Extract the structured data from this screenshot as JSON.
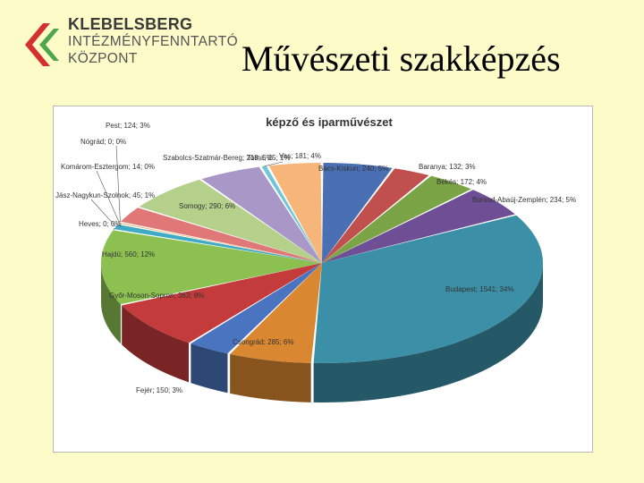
{
  "logo": {
    "line1": "KLEBELSBERG",
    "line2": "INTÉZMÉNYFENNTARTÓ",
    "line3": "KÖZPONT",
    "colors": {
      "red": "#d62f2f",
      "green": "#4da64d"
    }
  },
  "slide": {
    "title": "Művészeti szakképzés"
  },
  "chart_data": {
    "type": "pie",
    "title": "képző és iparművészet",
    "style": "3d-exploded",
    "legend": "none",
    "slices": [
      {
        "name": "Bács-Kiskun",
        "value": 240,
        "percent": 5,
        "label": "Bács-Kiskun; 240; 5%",
        "color": "#4a6fb3"
      },
      {
        "name": "Baranya",
        "value": 132,
        "percent": 3,
        "label": "Baranya; 132; 3%",
        "color": "#c0504d"
      },
      {
        "name": "Békés",
        "value": 172,
        "percent": 4,
        "label": "Békés; 172; 4%",
        "color": "#7aa445"
      },
      {
        "name": "Borsod-Abaúj-Zemplén",
        "value": 234,
        "percent": 5,
        "label": "Borsod-Abaúj-Zemplén; 234; 5%",
        "color": "#6e4f96"
      },
      {
        "name": "Budapest",
        "value": 1541,
        "percent": 34,
        "label": "Budapest; 1541; 34%",
        "color": "#3b8fa6"
      },
      {
        "name": "Csongrád",
        "value": 285,
        "percent": 6,
        "label": "Csongrád; 285; 6%",
        "color": "#d98731"
      },
      {
        "name": "Fejér",
        "value": 150,
        "percent": 3,
        "label": "Fejér; 150; 3%",
        "color": "#4a74bf"
      },
      {
        "name": "Győr-Moson-Sopron",
        "value": 363,
        "percent": 8,
        "label": "Győr-Moson-Sopron; 363; 8%",
        "color": "#c43b3b"
      },
      {
        "name": "Hajdú",
        "value": 560,
        "percent": 12,
        "label": "Hajdú; 560; 12%",
        "color": "#8cc152"
      },
      {
        "name": "Heves",
        "value": 0,
        "percent": 0,
        "label": "Heves; 0; 0%",
        "color": "#8166a6"
      },
      {
        "name": "Jász-Nagykun-Szolnok",
        "value": 45,
        "percent": 1,
        "label": "Jász-Nagykun-Szolnok; 45; 1%",
        "color": "#3eaac4"
      },
      {
        "name": "Komárom-Esztergom",
        "value": 14,
        "percent": 0,
        "label": "Komárom-Esztergom; 14; 0%",
        "color": "#f4a24a"
      },
      {
        "name": "Nógrád",
        "value": 0,
        "percent": 0,
        "label": "Nógrád; 0; 0%",
        "color": "#7f9fd6"
      },
      {
        "name": "Pest",
        "value": 124,
        "percent": 3,
        "label": "Pest; 124; 3%",
        "color": "#e07878"
      },
      {
        "name": "Somogy",
        "value": 290,
        "percent": 6,
        "label": "Somogy; 290; 6%",
        "color": "#b5d08a"
      },
      {
        "name": "Szabolcs-Szatmár-Bereg",
        "value": 218,
        "percent": 5,
        "label": "Szabolcs-Szatmár-Bereg; 218; 5%",
        "color": "#a897c7"
      },
      {
        "name": "Tolna",
        "value": 25,
        "percent": 1,
        "label": "Tolna; 25; 1%",
        "color": "#6ec6d8"
      },
      {
        "name": "Vas",
        "value": 181,
        "percent": 4,
        "label": "Vas; 181; 4%",
        "color": "#f7b679"
      }
    ]
  }
}
